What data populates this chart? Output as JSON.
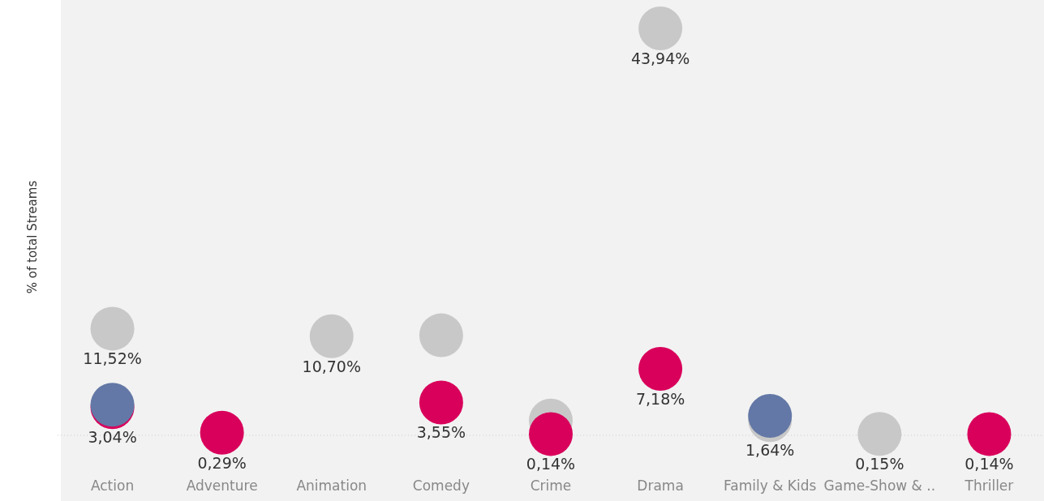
{
  "chart_data": {
    "type": "scatter",
    "ylabel": "% of total Streams",
    "categories": [
      "Action",
      "Adventure",
      "Animation",
      "Comedy",
      "Crime",
      "Drama",
      "Family & Kids",
      "Game-Show & ..",
      "Thriller"
    ],
    "marker": "circle",
    "ref_lines": [
      {
        "axis": "y",
        "value": 0,
        "color": "#cccccc",
        "line_style": "dotted"
      }
    ],
    "series": [
      {
        "color": "#c8c8c8",
        "values": [
          11.52,
          null,
          10.7,
          10.8,
          1.6,
          43.94,
          1.64,
          0.15,
          null
        ],
        "value_labels": [
          "11,52%",
          null,
          "10,70%",
          null,
          null,
          "43,94%",
          "1,64%",
          "0,15%",
          null
        ]
      },
      {
        "color": "#d9005b",
        "values": [
          3.04,
          0.29,
          null,
          3.55,
          0.14,
          7.18,
          null,
          null,
          0.14
        ],
        "value_labels": [
          "3,04%",
          "0,29%",
          null,
          "3,55%",
          "0,14%",
          "7,18%",
          null,
          null,
          "0,14%"
        ]
      },
      {
        "color": "#6378a6",
        "values": [
          3.3,
          null,
          null,
          null,
          null,
          null,
          2.1,
          null,
          null
        ]
      }
    ]
  }
}
